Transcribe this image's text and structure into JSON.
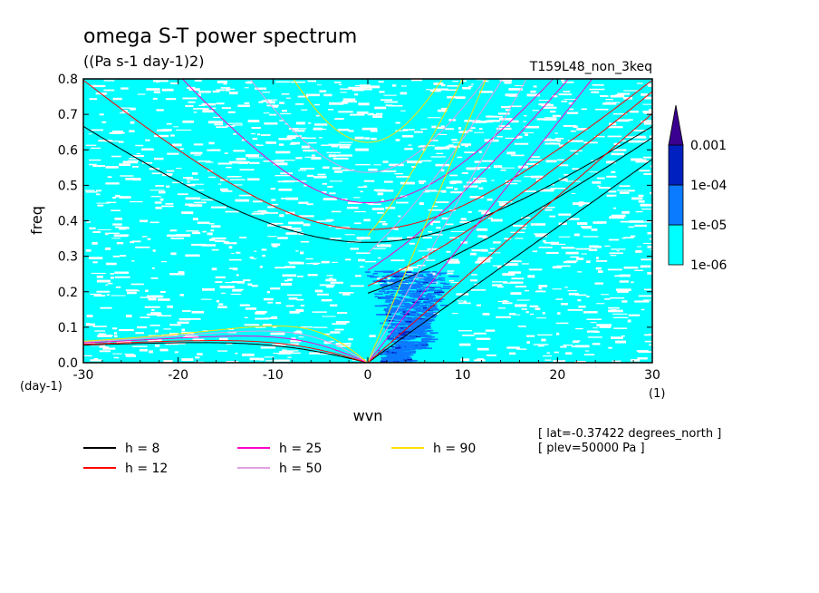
{
  "chart_data": {
    "type": "heatmap",
    "title": "omega S-T power spectrum",
    "subtitle": "((Pa s-1 day-1)2)",
    "run_label": "T159L48_non_3keq",
    "xlabel": "wvn",
    "ylabel": "freq",
    "x_unit": "(1)",
    "y_unit": "(day-1)",
    "xlim": [
      -30,
      30
    ],
    "ylim": [
      0,
      0.8
    ],
    "xticks": [
      -30,
      -20,
      -10,
      0,
      10,
      20,
      30
    ],
    "yticks": [
      0.0,
      0.1,
      0.2,
      0.3,
      0.4,
      0.5,
      0.6,
      0.7,
      0.8
    ],
    "ytick_labels": [
      "0.0",
      "0.1",
      "0.2",
      "0.3",
      "0.4",
      "0.5",
      "0.6",
      "0.7",
      "0.8"
    ],
    "colorbar": {
      "levels": [
        "1e-06",
        "1e-05",
        "1e-04",
        "0.001"
      ],
      "colors": [
        "#00ffff",
        "#0a7aff",
        "#0020c0",
        "#3a0090"
      ],
      "overflow_color": "#3a0090"
    },
    "background_color": "#00ffff",
    "enhanced_region_note": "",
    "dispersion_curves": [
      {
        "h": 8,
        "label": "h =  8",
        "color": "#000000"
      },
      {
        "h": 12,
        "label": "h = 12",
        "color": "#ff0000"
      },
      {
        "h": 25,
        "label": "h = 25",
        "color": "#ff00c8"
      },
      {
        "h": 50,
        "label": "h = 50",
        "color": "#e0a0e0"
      },
      {
        "h": 90,
        "label": "h = 90",
        "color": "#ffe000"
      }
    ],
    "meta_lines": [
      "[ lat=-0.37422 degrees_north ]",
      "[ plev=50000 Pa ]"
    ]
  }
}
